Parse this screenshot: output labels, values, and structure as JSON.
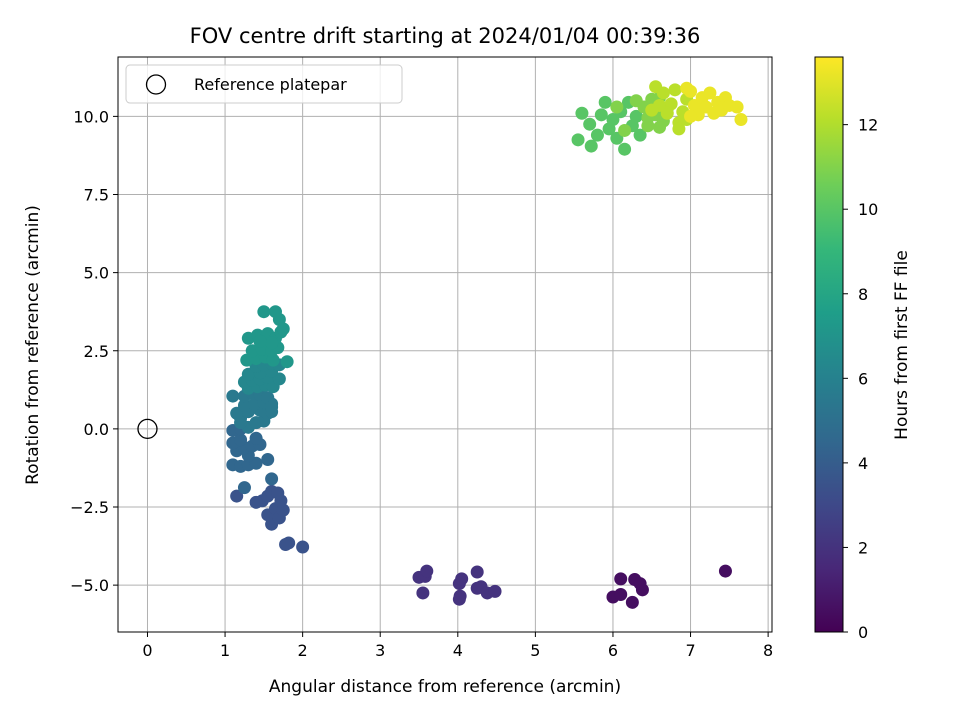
{
  "chart_data": {
    "type": "scatter",
    "title": "FOV centre drift starting at 2024/01/04 00:39:36",
    "xlabel": "Angular distance from reference (arcmin)",
    "ylabel": "Rotation from reference (arcmin)",
    "xlim": [
      -0.38,
      8.05
    ],
    "ylim": [
      -6.5,
      11.9
    ],
    "xticks": [
      0,
      1,
      2,
      3,
      4,
      5,
      6,
      7,
      8
    ],
    "xtick_labels": [
      "0",
      "1",
      "2",
      "3",
      "4",
      "5",
      "6",
      "7",
      "8"
    ],
    "yticks": [
      -5.0,
      -2.5,
      0.0,
      2.5,
      5.0,
      7.5,
      10.0
    ],
    "ytick_labels": [
      "−5.0",
      "−2.5",
      "0.0",
      "2.5",
      "5.0",
      "7.5",
      "10.0"
    ],
    "grid": true,
    "legend": {
      "placement": "top-left",
      "entries": [
        "Reference platepar"
      ]
    },
    "reference_point": {
      "x": 0,
      "y": 0
    },
    "colorbar": {
      "label": "Hours from first FF file",
      "range": [
        0,
        13.6
      ],
      "ticks": [
        0,
        2,
        4,
        6,
        8,
        10,
        12
      ],
      "tick_labels": [
        "0",
        "2",
        "4",
        "6",
        "8",
        "10",
        "12"
      ],
      "colormap": "viridis"
    },
    "clusters": [
      {
        "hours": 0.5,
        "points": [
          [
            7.45,
            -4.55
          ],
          [
            6.1,
            -4.8
          ],
          [
            6.28,
            -4.82
          ],
          [
            6.35,
            -4.95
          ],
          [
            6.38,
            -5.15
          ],
          [
            6.0,
            -5.38
          ],
          [
            6.1,
            -5.3
          ],
          [
            6.25,
            -5.55
          ]
        ]
      },
      {
        "hours": 2.0,
        "points": [
          [
            3.5,
            -4.75
          ],
          [
            3.58,
            -4.72
          ],
          [
            3.6,
            -4.55
          ],
          [
            3.55,
            -5.25
          ],
          [
            4.02,
            -4.95
          ],
          [
            4.05,
            -4.8
          ],
          [
            4.03,
            -5.35
          ],
          [
            4.02,
            -5.45
          ],
          [
            4.25,
            -4.58
          ],
          [
            4.25,
            -5.1
          ],
          [
            4.3,
            -5.05
          ],
          [
            4.38,
            -5.25
          ],
          [
            4.48,
            -5.2
          ]
        ]
      },
      {
        "hours": 3.5,
        "points": [
          [
            1.82,
            -3.65
          ],
          [
            1.78,
            -3.7
          ],
          [
            2.0,
            -3.78
          ],
          [
            1.6,
            -3.05
          ],
          [
            1.55,
            -2.75
          ],
          [
            1.48,
            -2.3
          ],
          [
            1.65,
            -2.55
          ],
          [
            1.7,
            -2.85
          ],
          [
            1.75,
            -2.6
          ],
          [
            1.72,
            -2.3
          ],
          [
            1.55,
            -2.15
          ],
          [
            1.4,
            -2.35
          ],
          [
            1.6,
            -2.0
          ],
          [
            1.68,
            -2.05
          ],
          [
            1.15,
            -2.15
          ]
        ]
      },
      {
        "hours": 4.5,
        "points": [
          [
            1.25,
            -1.88
          ],
          [
            1.6,
            -1.6
          ],
          [
            1.55,
            -0.98
          ],
          [
            1.1,
            -1.15
          ],
          [
            1.2,
            -1.2
          ],
          [
            1.3,
            -1.15
          ],
          [
            1.4,
            -1.1
          ],
          [
            1.3,
            -0.85
          ],
          [
            1.15,
            -0.7
          ],
          [
            1.25,
            -0.6
          ],
          [
            1.35,
            -0.55
          ],
          [
            1.45,
            -0.5
          ],
          [
            1.1,
            -0.45
          ],
          [
            1.2,
            -0.35
          ],
          [
            1.4,
            -0.3
          ],
          [
            1.1,
            -0.05
          ],
          [
            1.2,
            0.0
          ]
        ]
      },
      {
        "hours": 5.5,
        "points": [
          [
            1.3,
            0.05
          ],
          [
            1.4,
            0.2
          ],
          [
            1.5,
            0.25
          ],
          [
            1.2,
            0.35
          ],
          [
            1.15,
            0.5
          ],
          [
            1.3,
            0.55
          ],
          [
            1.45,
            0.6
          ],
          [
            1.55,
            0.5
          ],
          [
            1.6,
            0.55
          ],
          [
            1.25,
            0.75
          ],
          [
            1.38,
            0.8
          ],
          [
            1.5,
            0.85
          ],
          [
            1.6,
            0.8
          ],
          [
            1.1,
            1.05
          ],
          [
            1.25,
            1.05
          ],
          [
            1.35,
            1.15
          ],
          [
            1.45,
            1.1
          ],
          [
            1.55,
            1.0
          ],
          [
            1.6,
            0.7
          ],
          [
            1.2,
            0.2
          ]
        ]
      },
      {
        "hours": 6.3,
        "points": [
          [
            1.3,
            1.3
          ],
          [
            1.42,
            1.35
          ],
          [
            1.52,
            1.4
          ],
          [
            1.62,
            1.35
          ],
          [
            1.25,
            1.5
          ],
          [
            1.35,
            1.55
          ],
          [
            1.45,
            1.6
          ],
          [
            1.55,
            1.65
          ],
          [
            1.7,
            1.6
          ],
          [
            1.3,
            1.75
          ],
          [
            1.45,
            1.8
          ],
          [
            1.6,
            1.85
          ],
          [
            1.4,
            2.0
          ],
          [
            1.5,
            2.05
          ],
          [
            1.6,
            2.1
          ],
          [
            1.7,
            2.05
          ]
        ]
      },
      {
        "hours": 7.2,
        "points": [
          [
            1.28,
            2.2
          ],
          [
            1.4,
            2.25
          ],
          [
            1.52,
            2.3
          ],
          [
            1.62,
            2.2
          ],
          [
            1.8,
            2.15
          ],
          [
            1.35,
            2.5
          ],
          [
            1.48,
            2.55
          ],
          [
            1.6,
            2.5
          ],
          [
            1.68,
            2.6
          ],
          [
            1.3,
            2.9
          ],
          [
            1.42,
            3.0
          ],
          [
            1.55,
            3.05
          ],
          [
            1.65,
            2.9
          ],
          [
            1.72,
            3.1
          ],
          [
            1.5,
            3.75
          ],
          [
            1.65,
            3.75
          ],
          [
            1.7,
            3.5
          ],
          [
            1.75,
            3.2
          ],
          [
            1.6,
            2.75
          ],
          [
            1.45,
            2.8
          ]
        ]
      },
      {
        "hours": 10.0,
        "points": [
          [
            5.55,
            9.25
          ],
          [
            5.6,
            10.1
          ],
          [
            5.7,
            9.75
          ],
          [
            5.72,
            9.05
          ],
          [
            5.8,
            9.4
          ],
          [
            5.85,
            10.05
          ],
          [
            5.9,
            10.45
          ],
          [
            5.95,
            9.6
          ],
          [
            6.0,
            9.9
          ],
          [
            6.05,
            9.3
          ],
          [
            6.15,
            8.95
          ],
          [
            6.1,
            10.15
          ],
          [
            6.2,
            10.45
          ],
          [
            6.25,
            9.7
          ],
          [
            6.3,
            10.0
          ],
          [
            6.35,
            9.4
          ]
        ]
      },
      {
        "hours": 11.0,
        "points": [
          [
            6.4,
            10.3
          ],
          [
            6.45,
            9.7
          ],
          [
            6.5,
            10.55
          ],
          [
            6.55,
            10.05
          ],
          [
            6.6,
            10.6
          ],
          [
            6.65,
            9.85
          ],
          [
            6.7,
            10.25
          ],
          [
            6.15,
            9.55
          ],
          [
            6.05,
            10.3
          ],
          [
            6.3,
            10.5
          ],
          [
            6.6,
            9.65
          ],
          [
            6.45,
            9.95
          ]
        ]
      },
      {
        "hours": 12.2,
        "points": [
          [
            6.55,
            10.95
          ],
          [
            6.65,
            10.75
          ],
          [
            6.75,
            10.4
          ],
          [
            6.8,
            10.85
          ],
          [
            6.85,
            9.8
          ],
          [
            6.9,
            10.15
          ],
          [
            6.95,
            10.55
          ],
          [
            6.7,
            10.1
          ],
          [
            6.6,
            10.35
          ],
          [
            6.5,
            10.2
          ],
          [
            6.85,
            9.6
          ],
          [
            6.95,
            9.9
          ]
        ]
      },
      {
        "hours": 13.2,
        "points": [
          [
            7.0,
            10.8
          ],
          [
            7.05,
            10.35
          ],
          [
            7.1,
            10.05
          ],
          [
            7.15,
            10.6
          ],
          [
            7.2,
            10.3
          ],
          [
            7.25,
            10.75
          ],
          [
            7.3,
            10.1
          ],
          [
            7.35,
            10.45
          ],
          [
            7.4,
            10.2
          ],
          [
            7.45,
            10.6
          ],
          [
            7.5,
            10.35
          ],
          [
            7.6,
            10.3
          ],
          [
            7.65,
            9.9
          ],
          [
            7.0,
            10.0
          ],
          [
            6.95,
            10.9
          ]
        ]
      }
    ]
  }
}
